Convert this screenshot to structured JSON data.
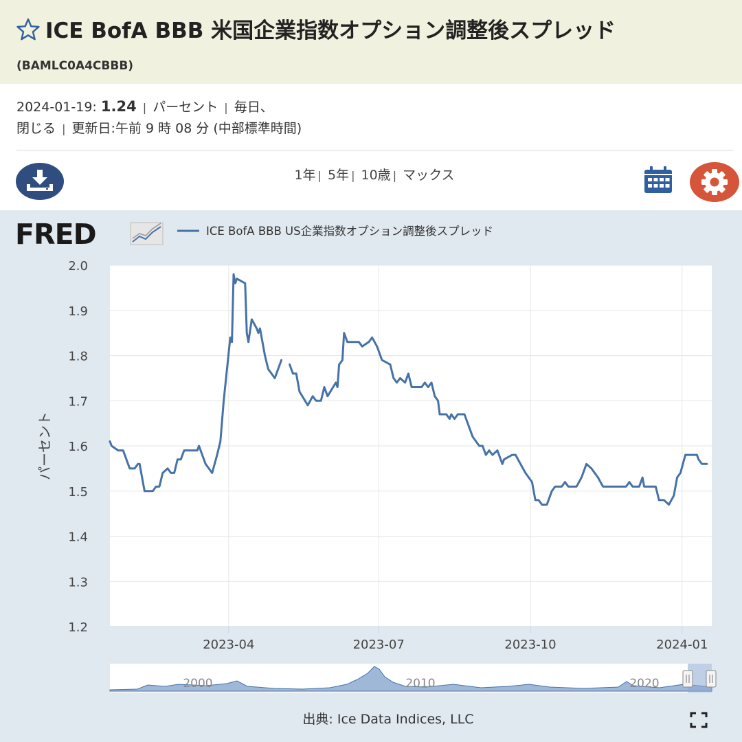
{
  "header": {
    "title": "ICE BofA BBB 米国企業指数オプション調整後スプレッド",
    "series_id": "(BAMLC0A4CBBB)"
  },
  "meta": {
    "date": "2024-01-19:",
    "value": "1.24",
    "units": "パーセント",
    "frequency": "毎日、",
    "close": "閉じる",
    "updated": "更新日:午前 9 時 08 分 (中部標準時間)"
  },
  "toolbar": {
    "ranges": [
      "1年",
      "5年",
      "10歳",
      "マックス"
    ]
  },
  "logo": {
    "text": "FRED"
  },
  "colors": {
    "line": "#4572a7",
    "accent_blue": "#2f4d7e",
    "gear": "#d6553a",
    "panel": "#e1e9f0"
  },
  "chart_data": {
    "type": "line",
    "title": "",
    "legend": "ICE BofA BBB US企業指数オプション調整後スプレッド",
    "legend_position": "top-left",
    "ylabel": "パーセント",
    "xlabel": "",
    "ylim": [
      1.2,
      2.0
    ],
    "yticks": [
      "1.2",
      "1.3",
      "1.4",
      "1.5",
      "1.6",
      "1.7",
      "1.8",
      "1.9",
      "2.0"
    ],
    "xlim": [
      "2023-01-19",
      "2024-01-19"
    ],
    "xticks": [
      {
        "date": "2023-04-01",
        "label": "2023-04"
      },
      {
        "date": "2023-07-01",
        "label": "2023-07"
      },
      {
        "date": "2023-10-01",
        "label": "2023-10"
      },
      {
        "date": "2024-01-01",
        "label": "2024-01"
      }
    ],
    "grid": true,
    "series": [
      {
        "name": "ICE BofA BBB US企業指数オプション調整後スプレッド",
        "segments": [
          [
            [
              "2023-01-19",
              1.61
            ],
            [
              "2023-01-20",
              1.6
            ],
            [
              "2023-01-24",
              1.59
            ],
            [
              "2023-01-27",
              1.59
            ],
            [
              "2023-01-30",
              1.56
            ],
            [
              "2023-01-31",
              1.55
            ],
            [
              "2023-02-03",
              1.55
            ],
            [
              "2023-02-05",
              1.56
            ],
            [
              "2023-02-06",
              1.56
            ],
            [
              "2023-02-08",
              1.52
            ],
            [
              "2023-02-09",
              1.5
            ],
            [
              "2023-02-14",
              1.5
            ],
            [
              "2023-02-16",
              1.51
            ],
            [
              "2023-02-18",
              1.51
            ],
            [
              "2023-02-20",
              1.54
            ],
            [
              "2023-02-23",
              1.55
            ],
            [
              "2023-02-25",
              1.54
            ],
            [
              "2023-02-27",
              1.54
            ],
            [
              "2023-03-01",
              1.57
            ],
            [
              "2023-03-03",
              1.57
            ],
            [
              "2023-03-05",
              1.59
            ],
            [
              "2023-03-10",
              1.59
            ],
            [
              "2023-03-13",
              1.59
            ],
            [
              "2023-03-14",
              1.6
            ],
            [
              "2023-03-16",
              1.58
            ],
            [
              "2023-03-18",
              1.56
            ],
            [
              "2023-03-20",
              1.55
            ],
            [
              "2023-03-22",
              1.54
            ],
            [
              "2023-03-25",
              1.58
            ],
            [
              "2023-03-27",
              1.61
            ],
            [
              "2023-03-29",
              1.7
            ],
            [
              "2023-04-02",
              1.84
            ],
            [
              "2023-04-03",
              1.83
            ],
            [
              "2023-04-04",
              1.98
            ],
            [
              "2023-04-05",
              1.96
            ],
            [
              "2023-04-06",
              1.97
            ],
            [
              "2023-04-11",
              1.96
            ],
            [
              "2023-04-12",
              1.85
            ],
            [
              "2023-04-13",
              1.83
            ],
            [
              "2023-04-15",
              1.88
            ],
            [
              "2023-04-18",
              1.86
            ],
            [
              "2023-04-19",
              1.85
            ],
            [
              "2023-04-20",
              1.86
            ],
            [
              "2023-04-23",
              1.8
            ],
            [
              "2023-04-25",
              1.77
            ],
            [
              "2023-04-29",
              1.75
            ],
            [
              "2023-05-01",
              1.77
            ],
            [
              "2023-05-03",
              1.79
            ]
          ],
          [
            [
              "2023-05-08",
              1.78
            ],
            [
              "2023-05-10",
              1.76
            ],
            [
              "2023-05-12",
              1.76
            ],
            [
              "2023-05-14",
              1.72
            ],
            [
              "2023-05-19",
              1.69
            ],
            [
              "2023-05-22",
              1.71
            ],
            [
              "2023-05-24",
              1.7
            ],
            [
              "2023-05-27",
              1.7
            ],
            [
              "2023-05-29",
              1.73
            ],
            [
              "2023-05-31",
              1.71
            ],
            [
              "2023-06-05",
              1.74
            ],
            [
              "2023-06-06",
              1.73
            ],
            [
              "2023-06-07",
              1.78
            ],
            [
              "2023-06-09",
              1.79
            ],
            [
              "2023-06-10",
              1.85
            ],
            [
              "2023-06-12",
              1.83
            ],
            [
              "2023-06-19",
              1.83
            ],
            [
              "2023-06-21",
              1.82
            ],
            [
              "2023-06-25",
              1.83
            ],
            [
              "2023-06-27",
              1.84
            ],
            [
              "2023-06-30",
              1.82
            ],
            [
              "2023-07-03",
              1.79
            ],
            [
              "2023-07-08",
              1.78
            ],
            [
              "2023-07-10",
              1.75
            ],
            [
              "2023-07-12",
              1.74
            ],
            [
              "2023-07-14",
              1.75
            ],
            [
              "2023-07-17",
              1.74
            ],
            [
              "2023-07-19",
              1.76
            ],
            [
              "2023-07-21",
              1.73
            ],
            [
              "2023-07-24",
              1.73
            ],
            [
              "2023-07-27",
              1.73
            ],
            [
              "2023-07-29",
              1.74
            ],
            [
              "2023-07-31",
              1.73
            ],
            [
              "2023-08-02",
              1.74
            ],
            [
              "2023-08-04",
              1.71
            ],
            [
              "2023-08-06",
              1.7
            ],
            [
              "2023-08-07",
              1.67
            ],
            [
              "2023-08-11",
              1.67
            ],
            [
              "2023-08-13",
              1.66
            ],
            [
              "2023-08-14",
              1.67
            ],
            [
              "2023-08-16",
              1.66
            ],
            [
              "2023-08-18",
              1.67
            ],
            [
              "2023-08-22",
              1.67
            ],
            [
              "2023-08-25",
              1.64
            ],
            [
              "2023-08-27",
              1.62
            ],
            [
              "2023-08-31",
              1.6
            ],
            [
              "2023-09-02",
              1.6
            ],
            [
              "2023-09-04",
              1.58
            ],
            [
              "2023-09-06",
              1.59
            ],
            [
              "2023-09-08",
              1.58
            ],
            [
              "2023-09-11",
              1.59
            ],
            [
              "2023-09-14",
              1.56
            ],
            [
              "2023-09-15",
              1.57
            ],
            [
              "2023-09-20",
              1.58
            ],
            [
              "2023-09-22",
              1.58
            ],
            [
              "2023-09-25",
              1.56
            ],
            [
              "2023-09-28",
              1.54
            ],
            [
              "2023-10-02",
              1.52
            ],
            [
              "2023-10-04",
              1.48
            ],
            [
              "2023-10-06",
              1.48
            ],
            [
              "2023-10-08",
              1.47
            ],
            [
              "2023-10-11",
              1.47
            ],
            [
              "2023-10-13",
              1.49
            ],
            [
              "2023-10-14",
              1.5
            ],
            [
              "2023-10-16",
              1.51
            ],
            [
              "2023-10-20",
              1.51
            ],
            [
              "2023-10-22",
              1.52
            ],
            [
              "2023-10-24",
              1.51
            ],
            [
              "2023-10-29",
              1.51
            ],
            [
              "2023-11-01",
              1.53
            ],
            [
              "2023-11-04",
              1.56
            ],
            [
              "2023-11-07",
              1.55
            ],
            [
              "2023-11-11",
              1.53
            ],
            [
              "2023-11-14",
              1.51
            ],
            [
              "2023-11-19",
              1.51
            ],
            [
              "2023-11-22",
              1.51
            ],
            [
              "2023-11-25",
              1.51
            ],
            [
              "2023-11-28",
              1.51
            ],
            [
              "2023-11-30",
              1.52
            ],
            [
              "2023-12-02",
              1.51
            ],
            [
              "2023-12-06",
              1.51
            ],
            [
              "2023-12-08",
              1.53
            ],
            [
              "2023-12-09",
              1.51
            ],
            [
              "2023-12-13",
              1.51
            ],
            [
              "2023-12-16",
              1.51
            ],
            [
              "2023-12-18",
              1.48
            ],
            [
              "2023-12-21",
              1.48
            ],
            [
              "2023-12-24",
              1.47
            ],
            [
              "2023-12-27",
              1.49
            ],
            [
              "2023-12-29",
              1.53
            ],
            [
              "2023-12-31",
              1.54
            ],
            [
              "2024-01-03",
              1.58
            ],
            [
              "2024-01-05",
              1.58
            ],
            [
              "2024-01-08",
              1.58
            ],
            [
              "2024-01-10",
              1.58
            ],
            [
              "2024-01-11",
              1.57
            ],
            [
              "2024-01-13",
              1.56
            ],
            [
              "2024-01-16",
              1.56
            ]
          ]
        ]
      }
    ]
  },
  "navigator": {
    "labels": [
      "2000",
      "2010",
      "2020"
    ]
  },
  "source": "出典: Ice Data Indices, LLC"
}
